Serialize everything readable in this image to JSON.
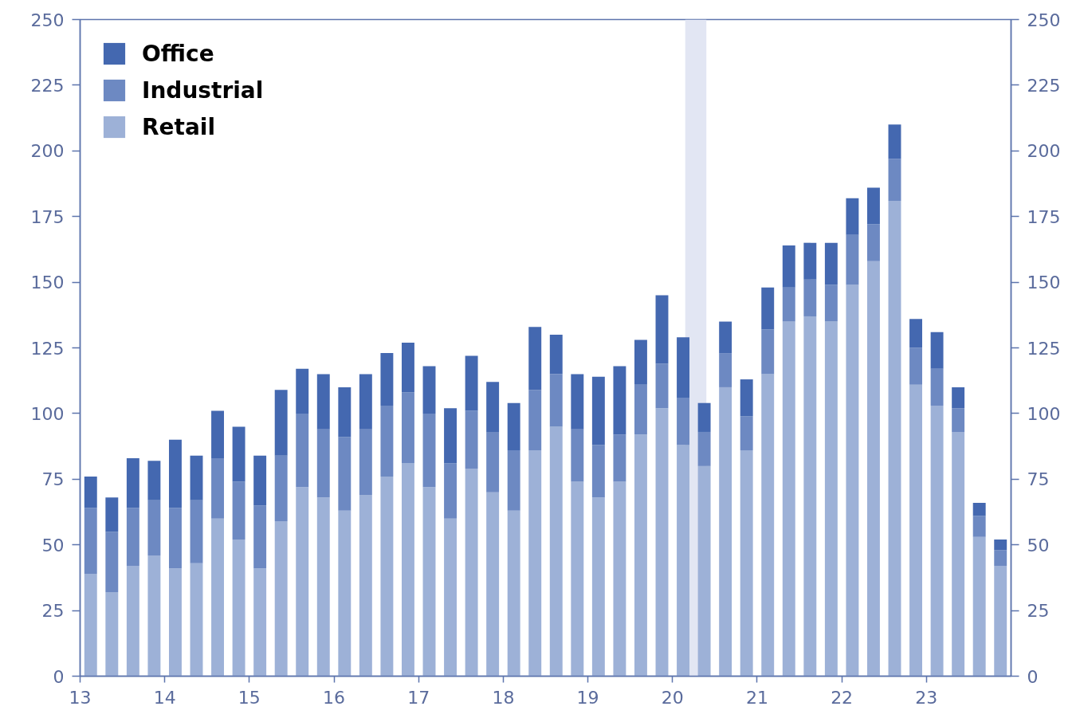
{
  "chart_data": {
    "type": "bar",
    "stacked": true,
    "x": [
      13.125,
      13.375,
      13.625,
      13.875,
      14.125,
      14.375,
      14.625,
      14.875,
      15.125,
      15.375,
      15.625,
      15.875,
      16.125,
      16.375,
      16.625,
      16.875,
      17.125,
      17.375,
      17.625,
      17.875,
      18.125,
      18.375,
      18.625,
      18.875,
      19.125,
      19.375,
      19.625,
      19.875,
      20.125,
      20.375,
      20.625,
      20.875,
      21.125,
      21.375,
      21.625,
      21.875,
      22.125,
      22.375,
      22.625,
      22.875,
      23.125,
      23.375,
      23.625,
      23.875
    ],
    "series": [
      {
        "name": "Retail",
        "color": "#9db1d7",
        "values": [
          39,
          32,
          42,
          46,
          41,
          43,
          60,
          52,
          41,
          59,
          72,
          68,
          63,
          69,
          76,
          81,
          72,
          60,
          79,
          70,
          63,
          86,
          95,
          74,
          68,
          74,
          92,
          102,
          88,
          80,
          110,
          86,
          115,
          135,
          137,
          135,
          149,
          158,
          181,
          111,
          103,
          93,
          53,
          42
        ]
      },
      {
        "name": "Industrial",
        "color": "#6d89c2",
        "values": [
          25,
          23,
          22,
          21,
          23,
          24,
          23,
          22,
          24,
          25,
          28,
          26,
          28,
          25,
          27,
          27,
          28,
          21,
          22,
          23,
          23,
          23,
          20,
          20,
          20,
          18,
          19,
          17,
          18,
          13,
          13,
          13,
          17,
          13,
          14,
          14,
          19,
          14,
          16,
          14,
          14,
          9,
          8,
          6
        ]
      },
      {
        "name": "Office",
        "color": "#4468b0",
        "values": [
          12,
          13,
          19,
          15,
          26,
          17,
          18,
          21,
          19,
          25,
          17,
          21,
          19,
          21,
          20,
          19,
          18,
          21,
          21,
          19,
          18,
          24,
          15,
          21,
          26,
          26,
          17,
          26,
          23,
          11,
          12,
          14,
          16,
          16,
          14,
          16,
          14,
          14,
          13,
          11,
          14,
          8,
          5,
          4
        ]
      }
    ],
    "xlim": [
      13,
      24
    ],
    "xticks": [
      13,
      14,
      15,
      16,
      17,
      18,
      19,
      20,
      21,
      22,
      23
    ],
    "ylim": [
      0,
      250
    ],
    "yticks": [
      0,
      25,
      50,
      75,
      100,
      125,
      150,
      175,
      200,
      225,
      250
    ],
    "y2lim": [
      0,
      250
    ],
    "y2ticks": [
      0,
      25,
      50,
      75,
      100,
      125,
      150,
      175,
      200,
      225,
      250
    ],
    "bands": [
      {
        "axis": "x",
        "from": 20.15,
        "to": 20.4,
        "color": "#e2e6f3"
      }
    ],
    "legend": "top left"
  }
}
